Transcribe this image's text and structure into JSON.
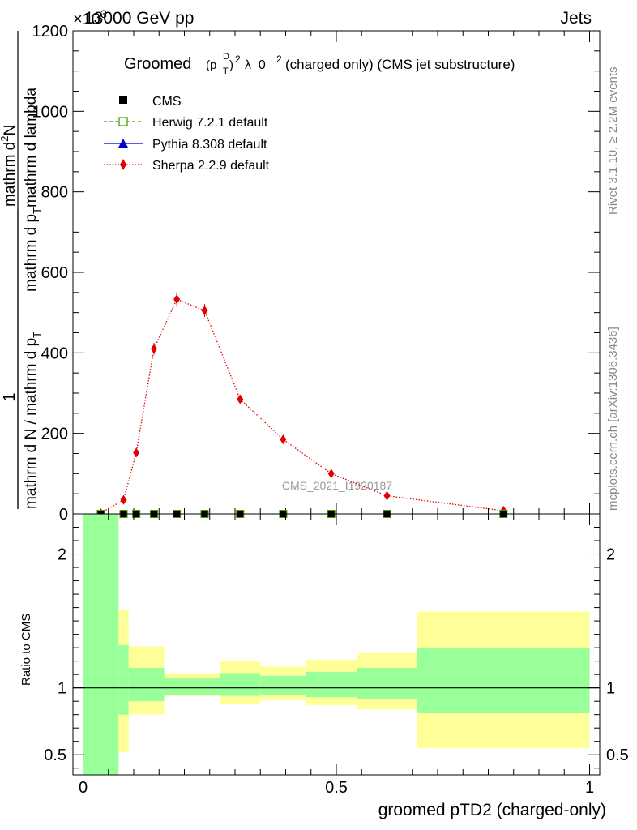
{
  "header": {
    "left": "13000 GeV pp",
    "right": "Jets",
    "exponent": "×10",
    "exponent_power": "3"
  },
  "side": {
    "rivet": "Rivet 3.1.10, ≥ 2.2M events",
    "mcplots": "mcplots.cern.ch [arXiv:1306.3436]"
  },
  "watermark": "CMS_2021_I1920187",
  "title": {
    "prefix": "Groomed",
    "p": "(p",
    "sub": "T",
    "sup": "D",
    "suffix": ")",
    "pow": "2",
    "lambda": "λ_0",
    "lambda_pow": "2",
    "rest": " (charged only) (CMS jet substructure)"
  },
  "ylabel": {
    "one": "1",
    "denominator": "mathrm d N / mathrm d p",
    "denominator_sub": "T",
    "numerator_full": "mathrm d²N / mathrm d p_T mathrm d lambda",
    "numerator_top": "mathrm d",
    "numerator_sup": "2",
    "numerator_n": "N",
    "numerator_mid": "mathrm d p",
    "numerator_mid_sub": "T",
    "numerator_tail": "mathrm d lambda"
  },
  "legend": [
    {
      "label": "CMS",
      "marker": "square-filled",
      "color": "#000000"
    },
    {
      "label": "Herwig 7.2.1 default",
      "marker": "square-open",
      "color": "#4e9a06"
    },
    {
      "label": "Pythia 8.308 default",
      "marker": "triangle",
      "color": "#0000cc"
    },
    {
      "label": "Sherpa 2.2.9 default",
      "marker": "diamond",
      "color": "#e00000"
    }
  ],
  "ratio_ylabel": "Ratio to CMS",
  "xlabel": "groomed pTD2 (charged-only)",
  "chart_data": {
    "type": "line",
    "main": {
      "xlim": [
        -0.02,
        1.02
      ],
      "ylim": [
        0,
        1200
      ],
      "y_unit_factor": 1000,
      "yticks": [
        0,
        200,
        400,
        600,
        800,
        1000,
        1200
      ],
      "series": [
        {
          "name": "Sherpa 2.2.9 default",
          "color": "#e00000",
          "x": [
            0.035,
            0.08,
            0.105,
            0.14,
            0.185,
            0.24,
            0.31,
            0.395,
            0.49,
            0.6,
            0.83
          ],
          "y": [
            2,
            35,
            152,
            410,
            533,
            505,
            285,
            185,
            100,
            45,
            8
          ],
          "err": [
            1,
            4,
            8,
            15,
            18,
            16,
            9,
            6,
            4,
            3,
            2
          ]
        },
        {
          "name": "CMS",
          "color": "#000000",
          "x": [
            0.035,
            0.08,
            0.105,
            0.14,
            0.185,
            0.24,
            0.31,
            0.395,
            0.49,
            0.6,
            0.83
          ],
          "y": [
            0,
            0,
            0,
            0,
            0,
            0,
            0,
            0,
            0,
            0,
            0
          ]
        }
      ]
    },
    "ratio": {
      "ylim": [
        0.35,
        2.3
      ],
      "yticks": [
        0.5,
        1,
        2
      ],
      "xticks": [
        0,
        0.5,
        1
      ],
      "xtick_labels": [
        "0",
        "0.5",
        "1"
      ],
      "reference": 1,
      "bands": [
        {
          "x0": 0.0,
          "x1": 0.07,
          "yellow": [
            0.35,
            2.3
          ],
          "green": [
            0.35,
            2.3
          ]
        },
        {
          "x0": 0.07,
          "x1": 0.09,
          "yellow": [
            0.52,
            1.58
          ],
          "green": [
            0.8,
            1.32
          ]
        },
        {
          "x0": 0.09,
          "x1": 0.16,
          "yellow": [
            0.8,
            1.31
          ],
          "green": [
            0.9,
            1.15
          ]
        },
        {
          "x0": 0.16,
          "x1": 0.27,
          "yellow": [
            0.94,
            1.11
          ],
          "green": [
            0.95,
            1.07
          ]
        },
        {
          "x0": 0.27,
          "x1": 0.35,
          "yellow": [
            0.88,
            1.2
          ],
          "green": [
            0.94,
            1.11
          ]
        },
        {
          "x0": 0.35,
          "x1": 0.44,
          "yellow": [
            0.91,
            1.16
          ],
          "green": [
            0.95,
            1.09
          ]
        },
        {
          "x0": 0.44,
          "x1": 0.54,
          "yellow": [
            0.87,
            1.21
          ],
          "green": [
            0.93,
            1.12
          ]
        },
        {
          "x0": 0.54,
          "x1": 0.66,
          "yellow": [
            0.84,
            1.26
          ],
          "green": [
            0.92,
            1.15
          ]
        },
        {
          "x0": 0.66,
          "x1": 1.0,
          "yellow": [
            0.55,
            1.57
          ],
          "green": [
            0.81,
            1.3
          ]
        }
      ]
    },
    "colors": {
      "band_yellow": "#ffff99",
      "band_green": "#99ff99"
    }
  }
}
